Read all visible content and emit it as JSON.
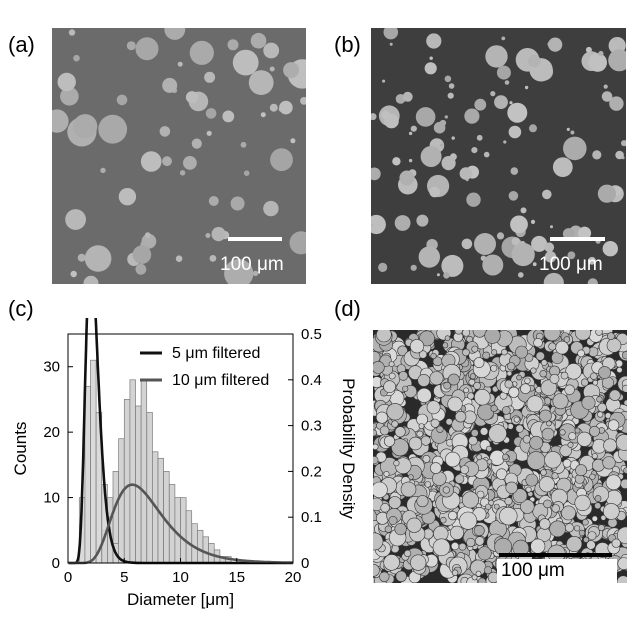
{
  "panels": {
    "a": {
      "label": "(a)",
      "scale_text": "100 μm"
    },
    "b": {
      "label": "(b)",
      "scale_text": "100 μm"
    },
    "c": {
      "label": "(c)"
    },
    "d": {
      "label": "(d)",
      "scale_text": "100 μm"
    }
  },
  "colors": {
    "panel_a_background": "#6b6b6b",
    "panel_b_background": "#3e3e3e",
    "droplet": "#b8b8b8",
    "panel_d_background": "#2a2a2a",
    "bars": "#d3d3d3",
    "curve_5um": "#111111",
    "curve_10um": "#555555"
  },
  "chart_data": {
    "type": "bar",
    "xlabel": "Diameter [μm]",
    "ylabel_left": "Counts",
    "ylabel_right": "Probability Density",
    "xlim": [
      0,
      20
    ],
    "ylim_left": [
      0,
      35
    ],
    "ylim_right": [
      0,
      0.5
    ],
    "x_ticks": [
      "0",
      "5",
      "10",
      "15",
      "20"
    ],
    "y_ticks_left": [
      "0",
      "10",
      "20",
      "30"
    ],
    "y_ticks_right": [
      "0",
      "0.1",
      "0.2",
      "0.3",
      "0.4",
      "0.5"
    ],
    "legend_position": "top-right",
    "series": [
      {
        "name": "5 μm filtered",
        "bin_width": 0.5,
        "bin_starts": [
          1.0,
          1.5,
          2.0,
          2.5,
          3.0,
          3.5,
          4.0
        ],
        "counts": [
          10,
          27,
          31,
          23,
          12,
          7,
          3
        ]
      },
      {
        "name": "10 μm filtered",
        "bin_width": 0.5,
        "bin_starts": [
          3.0,
          3.5,
          4.0,
          4.5,
          5.0,
          5.5,
          6.0,
          6.5,
          7.0,
          7.5,
          8.0,
          8.5,
          9.0,
          9.5,
          10.0,
          10.5,
          11.0,
          11.5,
          12.0,
          12.5,
          13.0,
          13.5,
          14.0
        ],
        "counts": [
          5,
          10,
          14,
          19,
          25,
          28,
          24,
          28,
          23,
          17,
          16,
          14,
          12,
          10,
          10,
          8,
          6,
          5,
          4,
          3,
          2,
          1,
          1
        ]
      }
    ],
    "fit_curves": [
      {
        "name": "5 μm filtered",
        "distribution": "lognormal",
        "median": 2.2,
        "sigma": 0.28
      },
      {
        "name": "10 μm filtered",
        "distribution": "lognormal",
        "median": 6.6,
        "sigma": 0.38
      }
    ]
  }
}
